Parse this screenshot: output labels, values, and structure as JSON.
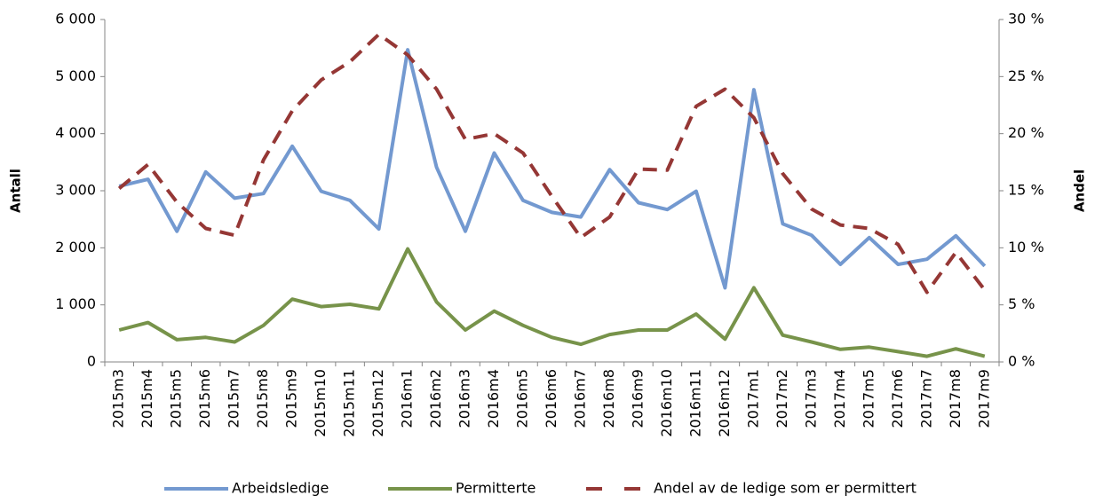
{
  "chart_data": {
    "type": "line",
    "categories": [
      "2015m3",
      "2015m4",
      "2015m5",
      "2015m6",
      "2015m7",
      "2015m8",
      "2015m9",
      "2015m10",
      "2015m11",
      "2015m12",
      "2016m1",
      "2016m2",
      "2016m3",
      "2016m4",
      "2016m5",
      "2016m6",
      "2016m7",
      "2016m8",
      "2016m9",
      "2016m10",
      "2016m11",
      "2016m12",
      "2017m1",
      "2017m2",
      "2017m3",
      "2017m4",
      "2017m5",
      "2017m6",
      "2017m7",
      "2017m8",
      "2017m9"
    ],
    "y_label": "Antall",
    "y2_label": "Andel",
    "ylim": [
      0,
      6000
    ],
    "yticks": [
      0,
      {
        "value": 1000,
        "label": "1 000"
      },
      {
        "value": 2000,
        "label": "2 000"
      },
      {
        "value": 3000,
        "label": "3 000"
      },
      {
        "value": 4000,
        "label": "4 000"
      },
      {
        "value": 5000,
        "label": "5 000"
      },
      {
        "value": 6000,
        "label": "6 000"
      }
    ],
    "y2lim": [
      0,
      30
    ],
    "y2ticks": [
      {
        "value": 0,
        "label": "0 %"
      },
      {
        "value": 5,
        "label": "5 %"
      },
      {
        "value": 10,
        "label": "10 %"
      },
      {
        "value": 15,
        "label": "15 %"
      },
      {
        "value": 20,
        "label": "20 %"
      },
      {
        "value": 25,
        "label": "25 %"
      },
      {
        "value": 30,
        "label": "30 %"
      }
    ],
    "legend": "bottom",
    "series": [
      {
        "name": "Arbeidsledige",
        "color": "#7399d0",
        "values": [
          3080,
          3200,
          2290,
          3330,
          2870,
          2950,
          3780,
          2990,
          2830,
          2330,
          5470,
          3410,
          2290,
          3660,
          2830,
          2620,
          2540,
          3370,
          2790,
          2670,
          2990,
          1300,
          4770,
          2420,
          2220,
          1710,
          2180,
          1710,
          1800,
          2210,
          1680
        ]
      },
      {
        "name": "Permitterte",
        "color": "#77934a",
        "values": [
          560,
          690,
          390,
          430,
          350,
          640,
          1100,
          970,
          1010,
          930,
          1980,
          1050,
          560,
          890,
          640,
          430,
          310,
          480,
          560,
          560,
          840,
          400,
          1300,
          470,
          350,
          220,
          260,
          180,
          100,
          230,
          100
        ]
      },
      {
        "name": "Andel av de ledige som er permittert",
        "color": "#953735",
        "dashed": true,
        "axis": "y2",
        "values": [
          15.2,
          17.3,
          14.0,
          11.7,
          11.1,
          17.7,
          22.0,
          24.7,
          26.3,
          28.7,
          26.9,
          23.9,
          19.5,
          20.0,
          18.3,
          14.5,
          10.9,
          12.7,
          16.9,
          16.8,
          22.4,
          23.9,
          21.4,
          16.5,
          13.4,
          12.0,
          11.7,
          10.3,
          6.1,
          9.6,
          6.3
        ]
      }
    ]
  }
}
